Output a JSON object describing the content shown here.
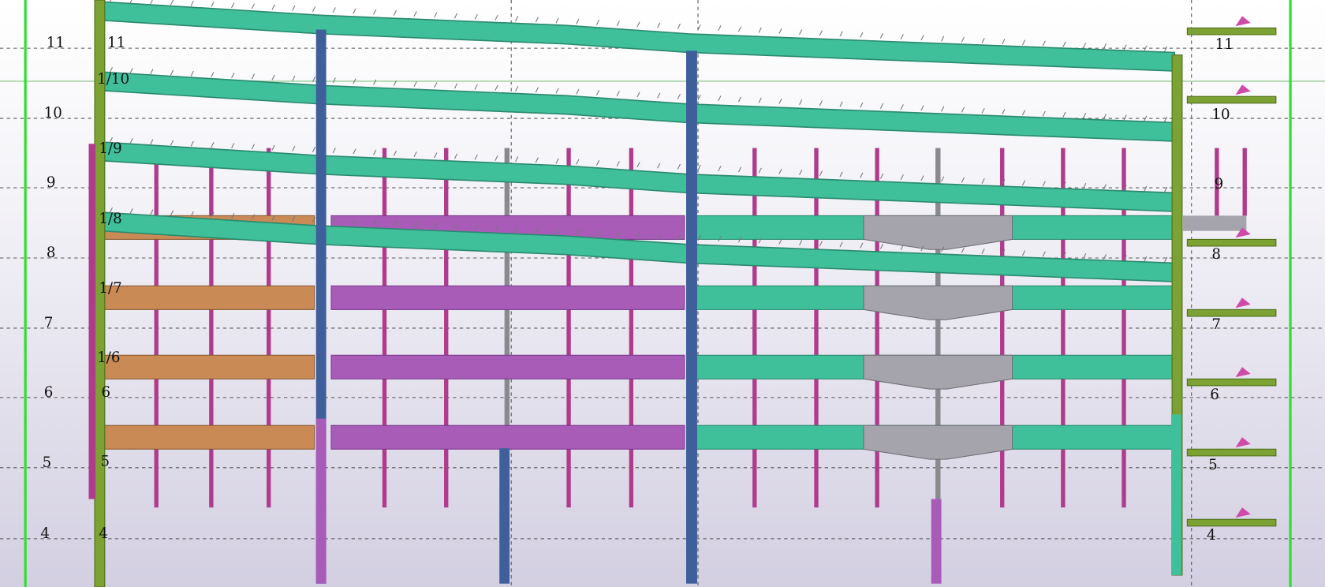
{
  "grid_labels": {
    "left": [
      "11",
      "10",
      "9",
      "8",
      "7",
      "6",
      "5",
      "4"
    ],
    "inner": [
      "11",
      "1/10",
      "1/9",
      "1/8",
      "1/7",
      "1/6",
      "6",
      "5",
      "4"
    ],
    "right": [
      "11",
      "10",
      "9",
      "8",
      "7",
      "6",
      "5",
      "4"
    ]
  }
}
